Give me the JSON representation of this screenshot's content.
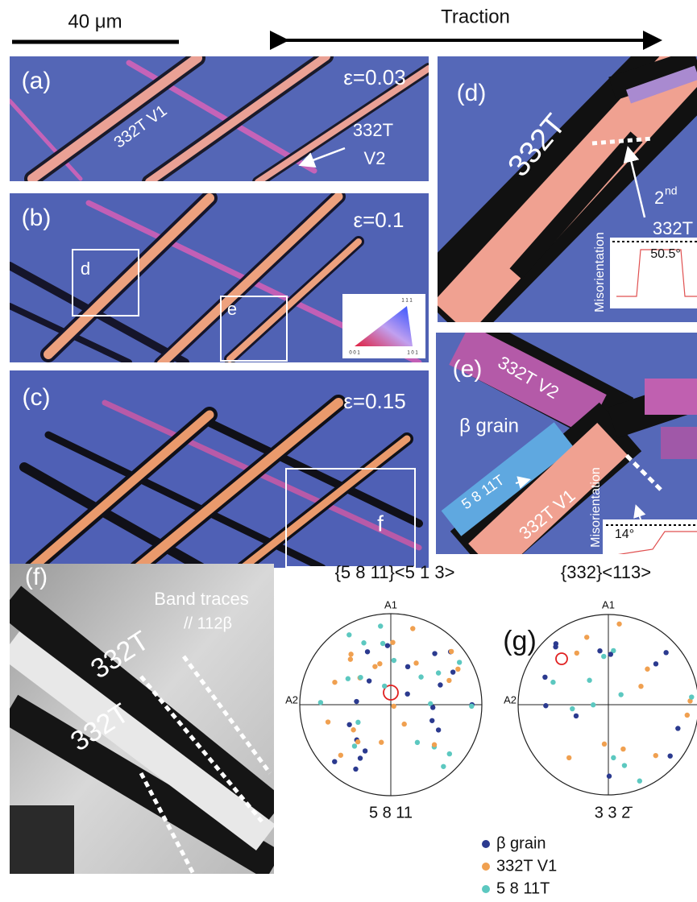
{
  "scale_bar": "40 μm",
  "traction": "Traction",
  "panel_a": {
    "label": "(a)",
    "strain": "ε=0.03",
    "variant_1": "332T V1",
    "variant_2_line1": "332T",
    "variant_2_line2": "V2"
  },
  "panel_b": {
    "label": "(b)",
    "strain": "ε=0.1",
    "box_d": "d",
    "box_e": "e",
    "ipf_legend": {
      "top": "1 1 1",
      "left": "0 0 1",
      "right": "1 0 1"
    }
  },
  "panel_c": {
    "label": "(c)",
    "strain": "ε=0.15",
    "box_f": "f"
  },
  "panel_d": {
    "label": "(d)",
    "twin": "332T",
    "second_twin": {
      "number": "2",
      "suffix": "nd",
      "name": "332T"
    },
    "inset": {
      "angle": "50.5°",
      "axis": "Misorientation"
    }
  },
  "panel_e": {
    "label": "(e)",
    "variant_2": "332T V2",
    "matrix": "β grain",
    "secondary": "5 8 11T",
    "variant_1": "332T V1",
    "inset": {
      "angle": "14°",
      "axis": "Misorientation"
    }
  },
  "panel_f": {
    "label": "(f)",
    "traces_line1": "Band traces",
    "traces_line2": "// 112β",
    "twin_upper": "332T",
    "twin_lower": "332T"
  },
  "panel_g": {
    "label": "(g)",
    "pole_figure_1": {
      "title": "{5 8 11}<5 1 3>",
      "axis_top": "A1",
      "axis_left": "A2",
      "normal": "5 8 11"
    },
    "pole_figure_2": {
      "title": "{332}<113>",
      "axis_top": "A1",
      "axis_left": "A2",
      "normal": "3 3 2̄"
    },
    "legend": [
      "β grain",
      "332T V1",
      "5 8 11T"
    ]
  }
}
